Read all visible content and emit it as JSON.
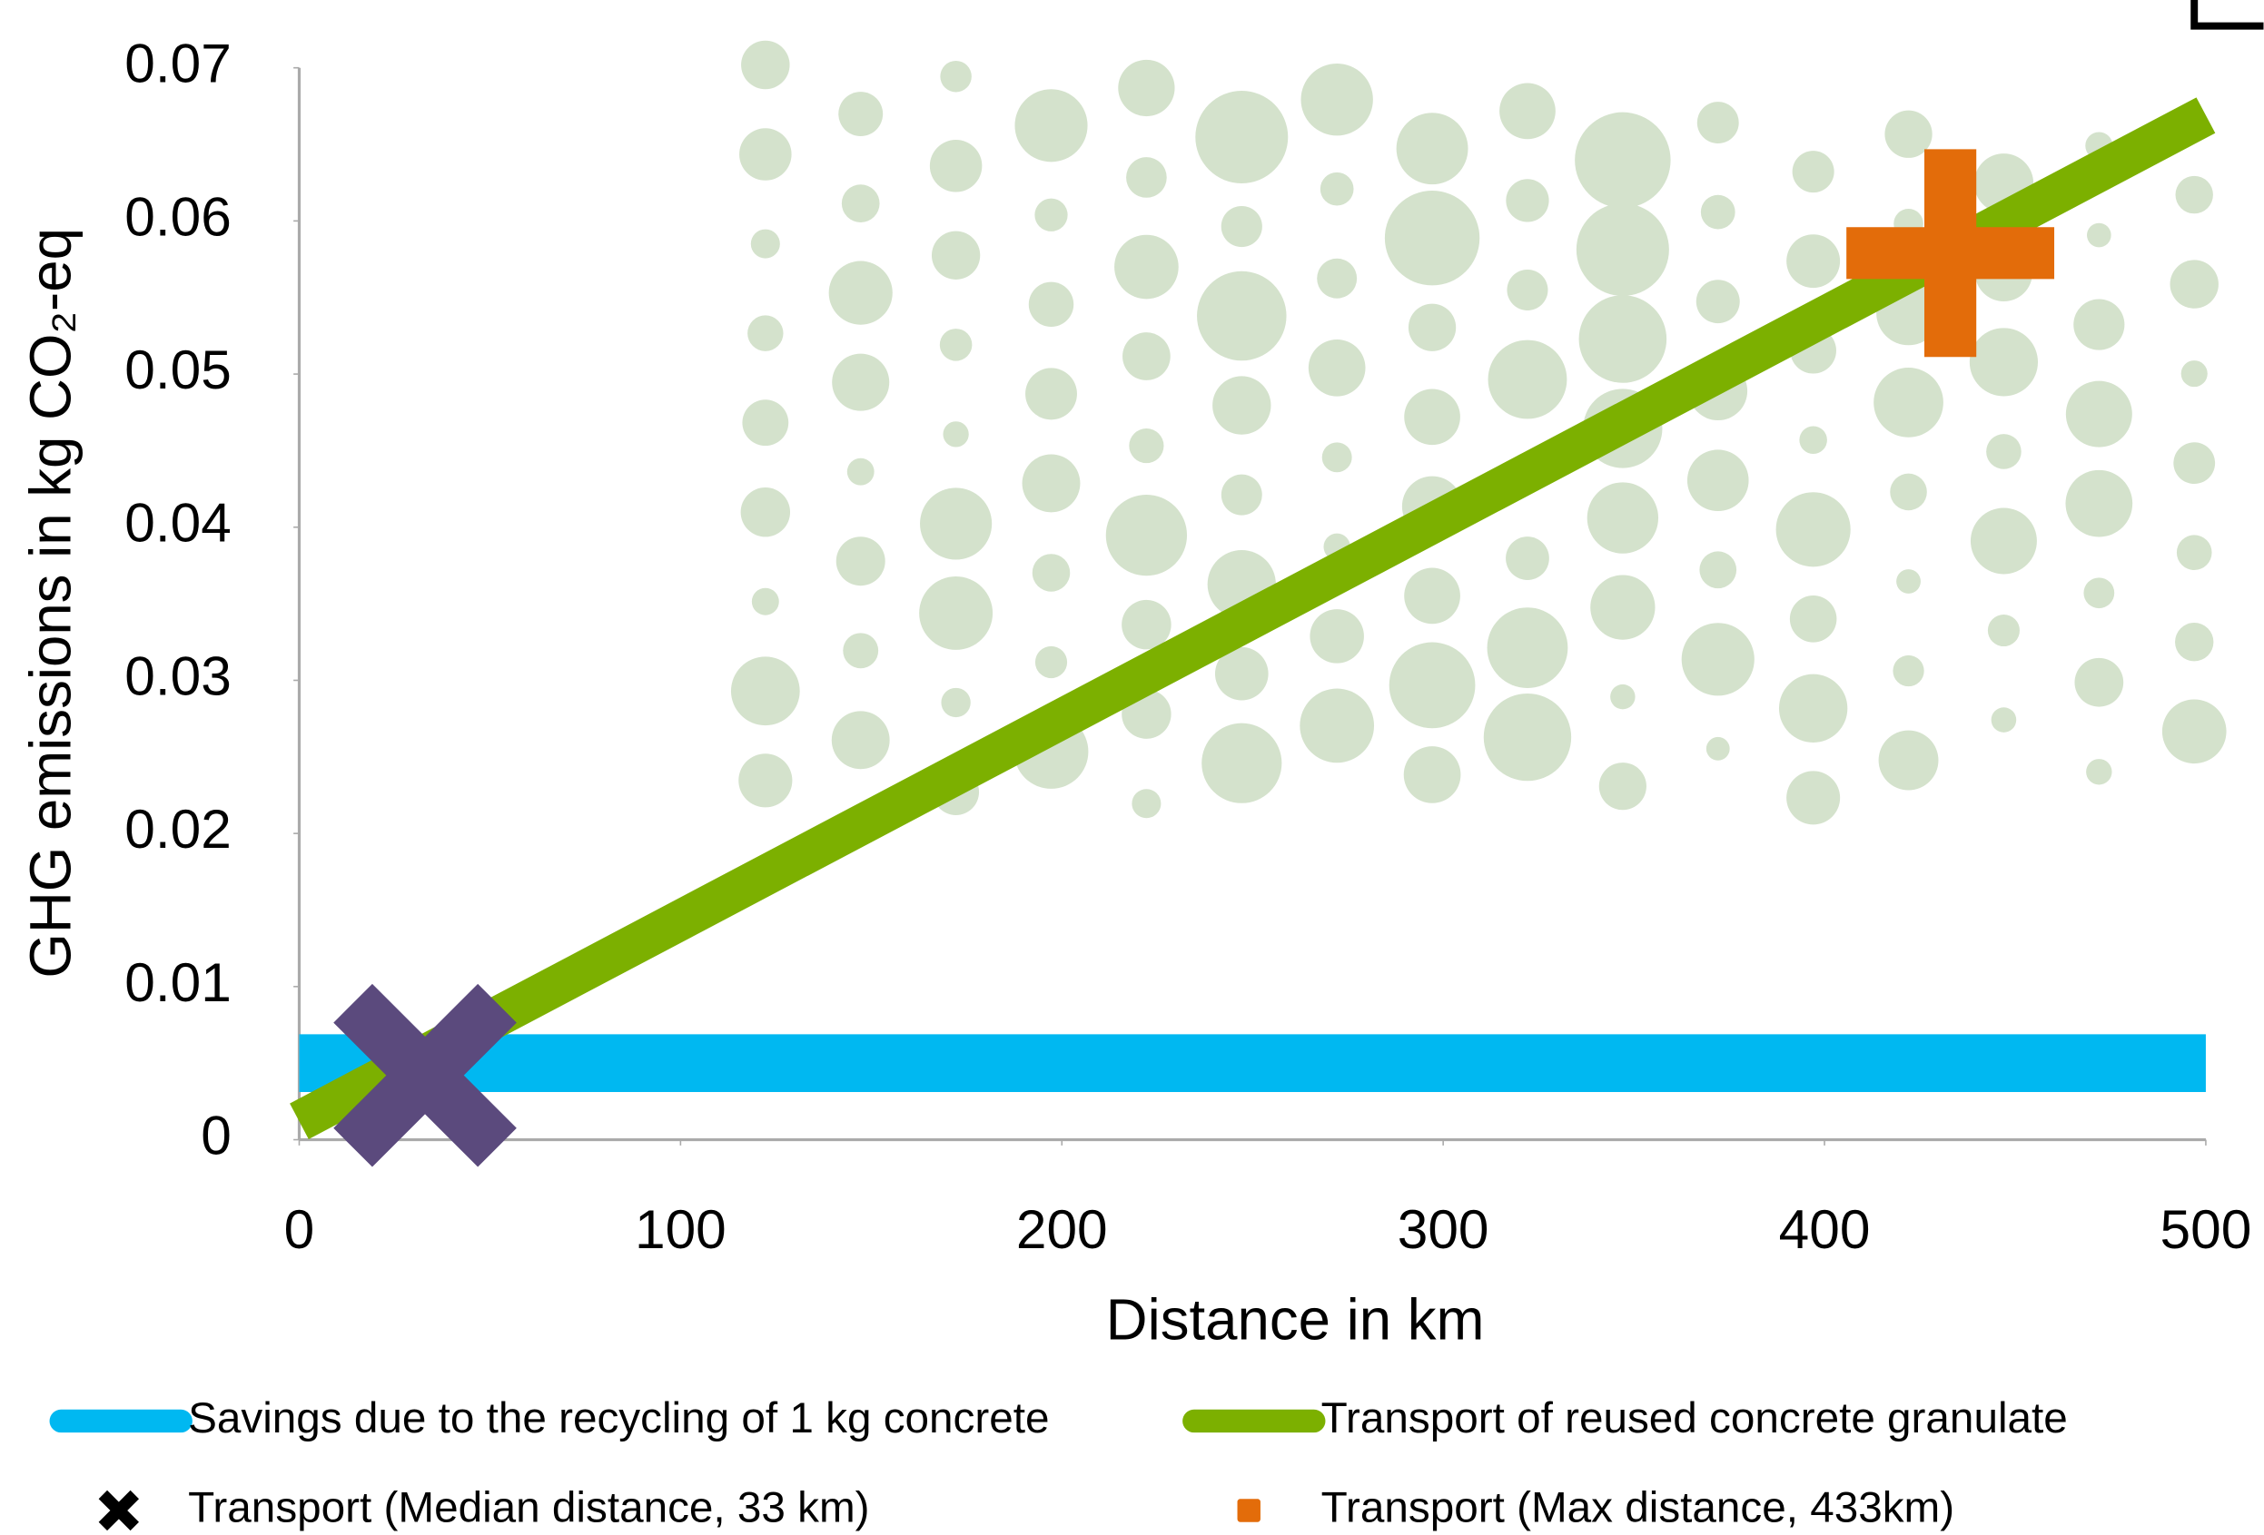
{
  "chart_data": {
    "type": "line",
    "x_label": "Distance in km",
    "y_label": "GHG emissions in kg CO₂-eq",
    "xlim": [
      0,
      500
    ],
    "xticks": [
      0,
      100,
      200,
      300,
      400,
      500
    ],
    "ylim": [
      0,
      0.07
    ],
    "yticks": [
      0,
      0.01,
      0.02,
      0.03,
      0.04,
      0.05,
      0.06,
      0.07
    ],
    "series": [
      {
        "name": "Savings due to the recycling of 1 kg concrete",
        "type": "line",
        "color": "#00b8f1",
        "x": [
          0,
          500
        ],
        "values": [
          0.005,
          0.005
        ]
      },
      {
        "name": "Transport of reused concrete granulate",
        "type": "line",
        "color": "#7cb000",
        "x": [
          0,
          500
        ],
        "values": [
          0.0012,
          0.0669
        ]
      },
      {
        "name": "Transport (Median distance, 33 km)",
        "type": "scatter",
        "marker": "x",
        "color": "#5b4a7d",
        "legend_color": "#000000",
        "x": [
          33
        ],
        "values": [
          0.0042
        ]
      },
      {
        "name": "Transport (Max distance, 433km)",
        "type": "scatter",
        "marker": "plus",
        "color": "#e36c0a",
        "x": [
          433
        ],
        "values": [
          0.0579
        ]
      }
    ]
  }
}
